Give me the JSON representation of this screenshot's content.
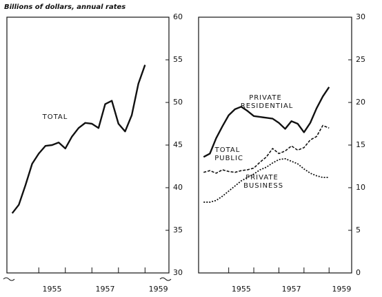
{
  "chart_data": [
    {
      "type": "line",
      "title": "Billions of dollars, annual rates",
      "x": [
        1954.0,
        1954.25,
        1954.5,
        1954.75,
        1955.0,
        1955.25,
        1955.5,
        1955.75,
        1956.0,
        1956.25,
        1956.5,
        1956.75,
        1957.0,
        1957.25,
        1957.5,
        1957.75,
        1958.0,
        1958.25,
        1958.5,
        1958.75,
        1959.0
      ],
      "series": [
        {
          "name": "TOTAL",
          "color": "#111111",
          "style": "solid",
          "values": [
            37.0,
            38.0,
            40.3,
            42.8,
            44.0,
            44.9,
            45.0,
            45.3,
            44.6,
            46.0,
            47.0,
            47.6,
            47.5,
            47.0,
            49.8,
            50.2,
            47.5,
            46.6,
            48.5,
            52.2,
            54.4
          ]
        }
      ],
      "xlim": [
        1953.8,
        1959.9
      ],
      "xticks": [
        1955,
        1956,
        1957,
        1958,
        1959
      ],
      "xlabels": [
        {
          "value": 1955.5,
          "label": "1955"
        },
        {
          "value": 1957.5,
          "label": "1957"
        },
        {
          "value": 1959.5,
          "label": "1959"
        }
      ],
      "ylim": [
        30,
        60
      ],
      "yticks": [
        30,
        35,
        40,
        45,
        50,
        55,
        60
      ]
    },
    {
      "type": "line",
      "x": [
        1954.0,
        1954.25,
        1954.5,
        1954.75,
        1955.0,
        1955.25,
        1955.5,
        1955.75,
        1956.0,
        1956.25,
        1956.5,
        1956.75,
        1957.0,
        1957.25,
        1957.5,
        1957.75,
        1958.0,
        1958.25,
        1958.5,
        1958.75,
        1959.0
      ],
      "series": [
        {
          "name": "PRIVATE RESIDENTIAL",
          "color": "#111111",
          "style": "solid",
          "values": [
            13.6,
            14.0,
            15.8,
            17.2,
            18.5,
            19.2,
            19.5,
            19.0,
            18.4,
            18.3,
            18.2,
            18.1,
            17.6,
            16.9,
            17.8,
            17.5,
            16.5,
            17.6,
            19.3,
            20.7,
            21.8
          ]
        },
        {
          "name": "TOTAL PUBLIC",
          "color": "#111111",
          "style": "dashed",
          "values": [
            11.8,
            12.0,
            11.7,
            12.1,
            11.9,
            11.8,
            12.0,
            12.1,
            12.3,
            13.0,
            13.6,
            14.6,
            14.0,
            14.3,
            14.9,
            14.4,
            14.7,
            15.6,
            16.0,
            17.3,
            17.0
          ]
        },
        {
          "name": "PRIVATE BUSINESS",
          "color": "#111111",
          "style": "dotted",
          "values": [
            8.3,
            8.3,
            8.5,
            9.0,
            9.6,
            10.2,
            10.8,
            11.2,
            11.6,
            12.1,
            12.4,
            12.9,
            13.3,
            13.4,
            13.1,
            12.8,
            12.2,
            11.7,
            11.4,
            11.2,
            11.2
          ]
        }
      ],
      "xlim": [
        1953.8,
        1959.9
      ],
      "xticks": [
        1955,
        1956,
        1957,
        1958,
        1959
      ],
      "xlabels": [
        {
          "value": 1955.5,
          "label": "1955"
        },
        {
          "value": 1957.5,
          "label": "1957"
        },
        {
          "value": 1959.5,
          "label": "1959"
        }
      ],
      "ylim": [
        0,
        30
      ],
      "yticks": [
        0,
        5,
        10,
        15,
        20,
        25,
        30
      ]
    }
  ]
}
